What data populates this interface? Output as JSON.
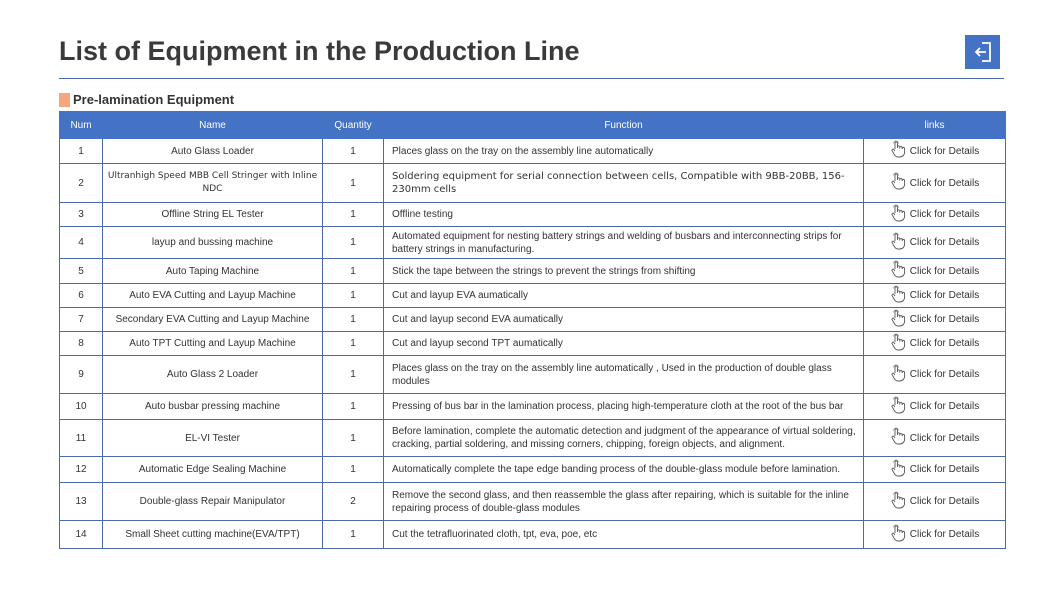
{
  "page_title": "List of Equipment in the Production Line",
  "exit_icon": "exit-arrow-icon",
  "accent_color": "#4472c4",
  "section_marker_color": "#f4a77d",
  "section_title": "Pre-lamination Equipment",
  "table": {
    "headers": {
      "num": "Num",
      "name": "Name",
      "quantity": "Quantity",
      "function": "Function",
      "links": "links"
    },
    "rows": [
      {
        "num": "1",
        "name": "Auto Glass Loader",
        "quantity": "1",
        "function": "Places glass on the tray on the assembly line automatically",
        "link": "Click for Details"
      },
      {
        "num": "2",
        "name": "Ultranhigh Speed MBB Cell Stringer with Inline NDC",
        "quantity": "1",
        "function": "Soldering equipment for serial connection between cells,  Compatible with 9BB-20BB, 156-230mm cells",
        "link": "Click for Details"
      },
      {
        "num": "3",
        "name": "Offline String EL Tester",
        "quantity": "1",
        "function": "Offline testing",
        "link": "Click for Details"
      },
      {
        "num": "4",
        "name": "layup and bussing machine",
        "quantity": "1",
        "function": "Automated equipment for nesting battery strings and welding of busbars and interconnecting strips for battery strings in manufacturing.",
        "link": "Click for Details"
      },
      {
        "num": "5",
        "name": "Auto Taping Machine",
        "quantity": "1",
        "function": "Stick the tape between the strings to prevent the strings from shifting",
        "link": "Click for Details"
      },
      {
        "num": "6",
        "name": "Auto EVA Cutting and Layup Machine",
        "quantity": "1",
        "function": "Cut and layup  EVA aumatically",
        "link": "Click for Details"
      },
      {
        "num": "7",
        "name": "Secondary EVA Cutting and Layup Machine",
        "quantity": "1",
        "function": "Cut and layup second EVA aumatically",
        "link": "Click for Details"
      },
      {
        "num": "8",
        "name": "Auto TPT Cutting and Layup Machine",
        "quantity": "1",
        "function": "Cut and layup second TPT aumatically",
        "link": "Click for Details"
      },
      {
        "num": "9",
        "name": "Auto Glass 2 Loader",
        "quantity": "1",
        "function": "Places glass on the tray on the assembly line automatically , Used in the production of double glass modules",
        "link": "Click for Details"
      },
      {
        "num": "10",
        "name": "Auto busbar pressing machine",
        "quantity": "1",
        "function": "Pressing of bus bar in the lamination process, placing high-temperature cloth at the root of the bus bar",
        "link": "Click for Details"
      },
      {
        "num": "11",
        "name": "EL-VI Tester",
        "quantity": "1",
        "function": "Before lamination, complete the automatic detection and judgment of the appearance of virtual soldering, cracking, partial soldering, and missing corners, chipping, foreign objects, and alignment.",
        "link": "Click for Details"
      },
      {
        "num": "12",
        "name": "Automatic Edge Sealing  Machine",
        "quantity": "1",
        "function": "Automatically complete the tape edge banding process of the double-glass module before lamination.",
        "link": "Click for Details"
      },
      {
        "num": "13",
        "name": "Double-glass Repair Manipulator",
        "quantity": "2",
        "function": "Remove the second glass, and then reassemble the glass after repairing, which is suitable for the inline repairing process of double-glass modules",
        "link": "Click for Details"
      },
      {
        "num": "14",
        "name": "Small Sheet cutting machine(EVA/TPT)",
        "quantity": "1",
        "function": "Cut the tetrafluorinated cloth, tpt, eva, poe, etc",
        "link": "Click for Details"
      }
    ]
  }
}
